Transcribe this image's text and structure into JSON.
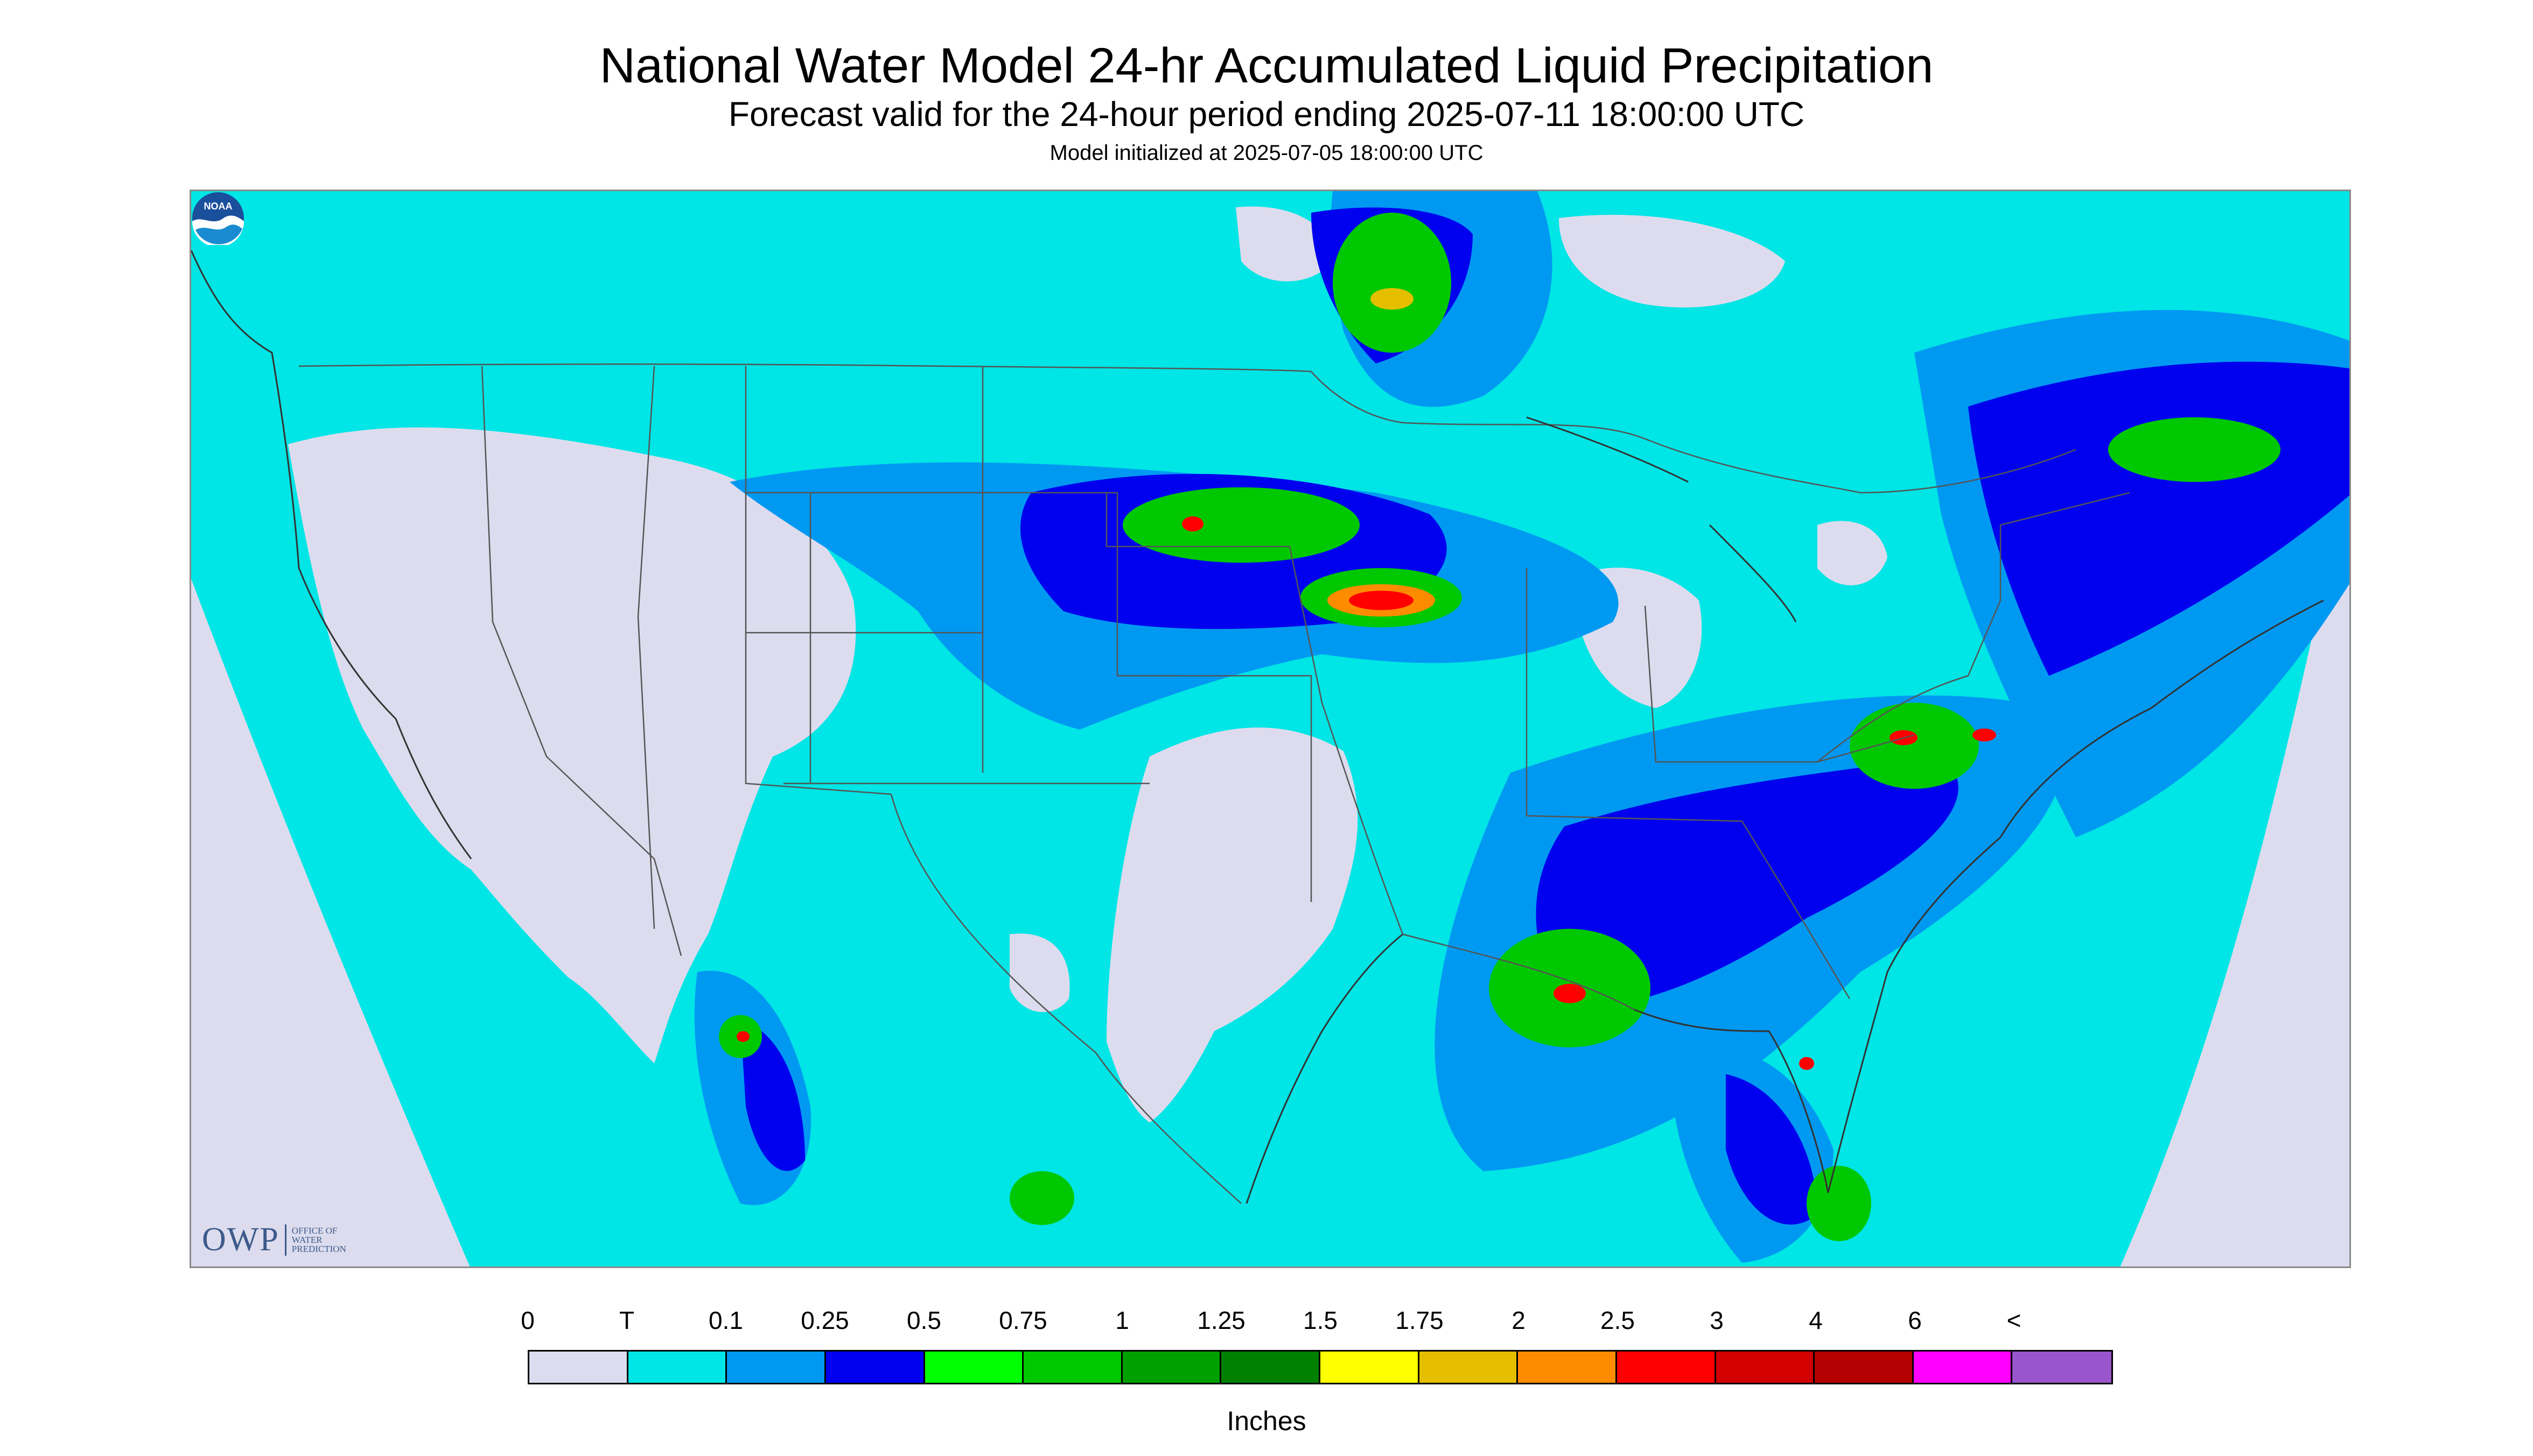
{
  "header": {
    "title": "National Water Model 24-hr Accumulated Liquid Precipitation",
    "subtitle": "Forecast valid for the 24-hour period ending 2025-07-11 18:00:00 UTC",
    "init_line": "Model initialized at 2025-07-05 18:00:00 UTC"
  },
  "map": {
    "background_color": "#dcdcee",
    "trace_color": "#00e5e5",
    "line_color": "#555555"
  },
  "logos": {
    "owp_mark": "OWP",
    "owp_text": [
      "OFFICE OF",
      "WATER",
      "PREDICTION"
    ],
    "noaa": "NOAA"
  },
  "legend": {
    "labels": [
      "0",
      "T",
      "0.1",
      "0.25",
      "0.5",
      "0.75",
      "1",
      "1.25",
      "1.5",
      "1.75",
      "2",
      "2.5",
      "3",
      "4",
      "6",
      "<"
    ],
    "colors": [
      "#dcdcee",
      "#00e5e5",
      "#0099f2",
      "#0000ee",
      "#00ff00",
      "#00c800",
      "#00a000",
      "#008000",
      "#ffff00",
      "#e6be00",
      "#ff8c00",
      "#ff0000",
      "#d20000",
      "#b40000",
      "#ff00ff",
      "#9955cc"
    ],
    "units": "Inches"
  }
}
